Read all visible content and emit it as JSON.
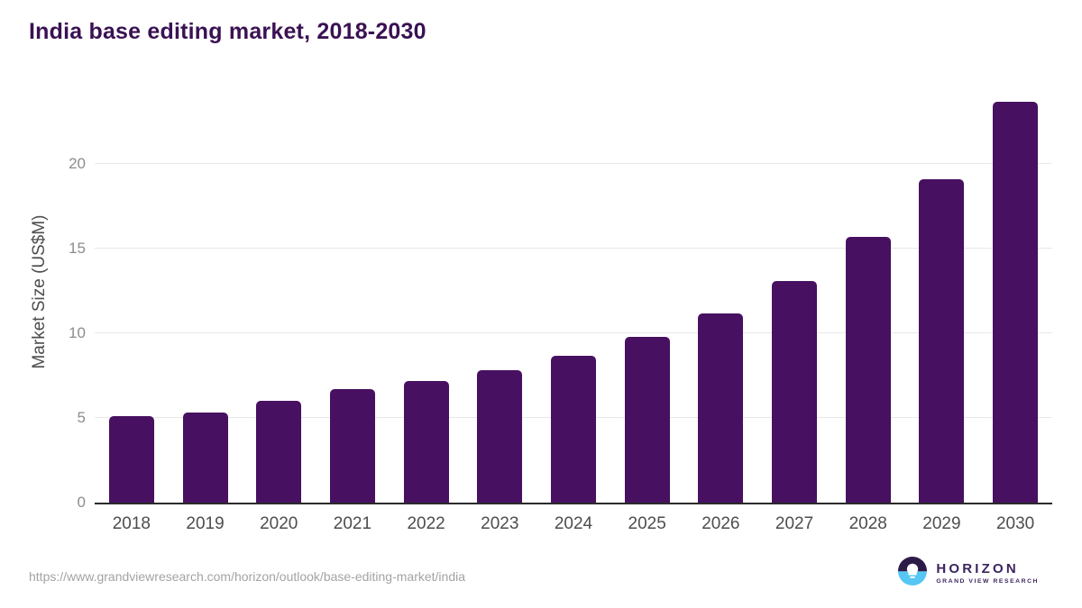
{
  "header": {
    "title": "India base editing market, 2018-2030"
  },
  "chart_data": {
    "type": "bar",
    "title": "India base editing market, 2018-2030",
    "categories": [
      "2018",
      "2019",
      "2020",
      "2021",
      "2022",
      "2023",
      "2024",
      "2025",
      "2026",
      "2027",
      "2028",
      "2029",
      "2030"
    ],
    "values": [
      5.1,
      5.3,
      6.0,
      6.7,
      7.2,
      7.8,
      8.7,
      9.8,
      11.2,
      13.1,
      15.7,
      19.1,
      23.7
    ],
    "xlabel": "",
    "ylabel": "Market Size (US$M)",
    "yticks": [
      0,
      5,
      10,
      15,
      20
    ],
    "ylim": [
      0,
      24.9
    ],
    "grid": "horizontal-only",
    "legend": "none",
    "bar_color": "#471060"
  },
  "footer": {
    "source_url": "https://www.grandviewresearch.com/horizon/outlook/base-editing-market/india",
    "logo": {
      "title": "HORIZON",
      "subtitle": "GRAND VIEW RESEARCH"
    }
  },
  "colors": {
    "title_text": "#3a1153",
    "bar": "#471060",
    "axis_line": "#2b2b2b",
    "gridline": "#e8e8e8",
    "y_tick_text": "#8c8c8c",
    "x_tick_text": "#4d4d4d",
    "url_text": "#a3a3a3",
    "logo_purple": "#2b1b47",
    "logo_blue": "#56c7f2"
  }
}
